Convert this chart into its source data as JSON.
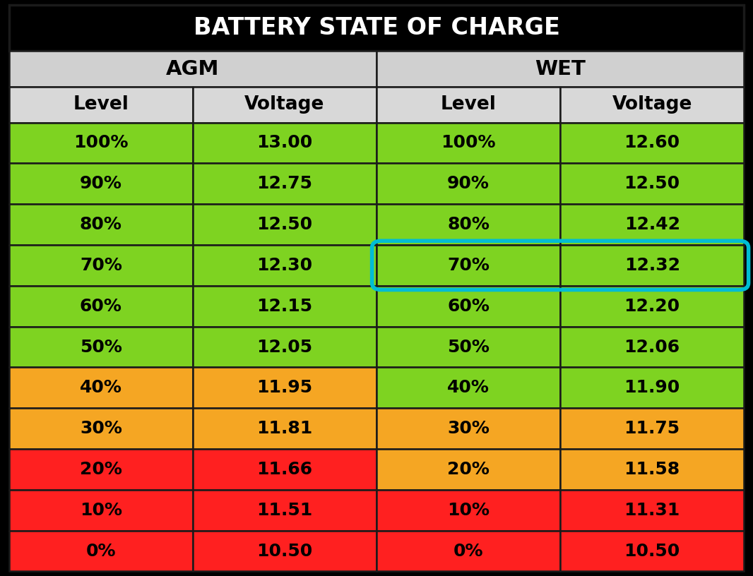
{
  "title": "BATTERY STATE OF CHARGE",
  "title_bg": "#000000",
  "title_color": "#ffffff",
  "agm_header": "AGM",
  "wet_header": "WET",
  "col_headers": [
    "Level",
    "Voltage",
    "Level",
    "Voltage"
  ],
  "col_header_bg": "#d8d8d8",
  "section_header_bg": "#d0d0d0",
  "agm_data": [
    [
      "100%",
      "13.00"
    ],
    [
      "90%",
      "12.75"
    ],
    [
      "80%",
      "12.50"
    ],
    [
      "70%",
      "12.30"
    ],
    [
      "60%",
      "12.15"
    ],
    [
      "50%",
      "12.05"
    ],
    [
      "40%",
      "11.95"
    ],
    [
      "30%",
      "11.81"
    ],
    [
      "20%",
      "11.66"
    ],
    [
      "10%",
      "11.51"
    ],
    [
      "0%",
      "10.50"
    ]
  ],
  "wet_data": [
    [
      "100%",
      "12.60"
    ],
    [
      "90%",
      "12.50"
    ],
    [
      "80%",
      "12.42"
    ],
    [
      "70%",
      "12.32"
    ],
    [
      "60%",
      "12.20"
    ],
    [
      "50%",
      "12.06"
    ],
    [
      "40%",
      "11.90"
    ],
    [
      "30%",
      "11.75"
    ],
    [
      "20%",
      "11.58"
    ],
    [
      "10%",
      "11.31"
    ],
    [
      "0%",
      "10.50"
    ]
  ],
  "agm_colors": [
    "#7ed321",
    "#7ed321",
    "#7ed321",
    "#7ed321",
    "#7ed321",
    "#7ed321",
    "#f5a623",
    "#f5a623",
    "#ff2020",
    "#ff2020",
    "#ff2020"
  ],
  "wet_colors": [
    "#7ed321",
    "#7ed321",
    "#7ed321",
    "#7ed321",
    "#7ed321",
    "#7ed321",
    "#7ed321",
    "#f5a623",
    "#f5a623",
    "#ff2020",
    "#ff2020"
  ],
  "highlight_row": 3,
  "highlight_color": "#00bcd4",
  "outer_bg": "#000000",
  "border_color": "#1a1a1a"
}
